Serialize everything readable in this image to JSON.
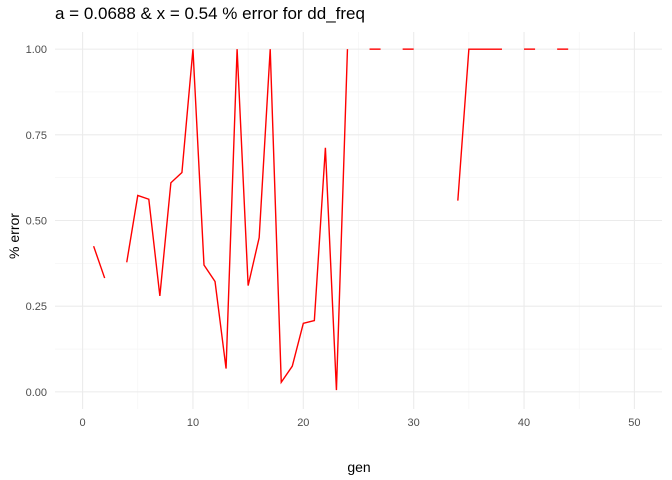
{
  "chart_data": {
    "type": "line",
    "title": "a = 0.0688 & x = 0.54 % error for dd_freq",
    "xlabel": "gen",
    "ylabel": "% error",
    "xlim": [
      -2.5,
      52.5
    ],
    "ylim": [
      -0.05,
      1.05
    ],
    "x_ticks": [
      0,
      10,
      20,
      30,
      40,
      50
    ],
    "y_ticks": [
      0.0,
      0.25,
      0.5,
      0.75,
      1.0
    ],
    "x_tick_labels": [
      "0",
      "10",
      "20",
      "30",
      "40",
      "50"
    ],
    "y_tick_labels": [
      "0.00",
      "0.25",
      "0.50",
      "0.75",
      "1.00"
    ],
    "grid": true,
    "color": "#ff0000",
    "series": [
      {
        "x": [
          1,
          2,
          3,
          4,
          5,
          6,
          7,
          8,
          9,
          10,
          11,
          12,
          13,
          14,
          15,
          16,
          17,
          18,
          19,
          20,
          21,
          22,
          23,
          24,
          25,
          26,
          27,
          28,
          29,
          30,
          31,
          32,
          33,
          34,
          35,
          36,
          37,
          38,
          39,
          40,
          41,
          42,
          43,
          44
        ],
        "values": [
          0.425,
          0.332,
          null,
          0.378,
          0.573,
          0.562,
          0.28,
          0.61,
          0.64,
          1.0,
          0.37,
          0.322,
          0.068,
          1.0,
          0.31,
          0.45,
          1.0,
          0.028,
          0.075,
          0.2,
          0.208,
          0.712,
          0.005,
          1.0,
          null,
          1.0,
          1.0,
          null,
          1.0,
          1.0,
          null,
          null,
          null,
          0.558,
          1.0,
          1.0,
          1.0,
          1.0,
          null,
          1.0,
          1.0,
          null,
          1.0,
          1.0
        ]
      }
    ]
  }
}
